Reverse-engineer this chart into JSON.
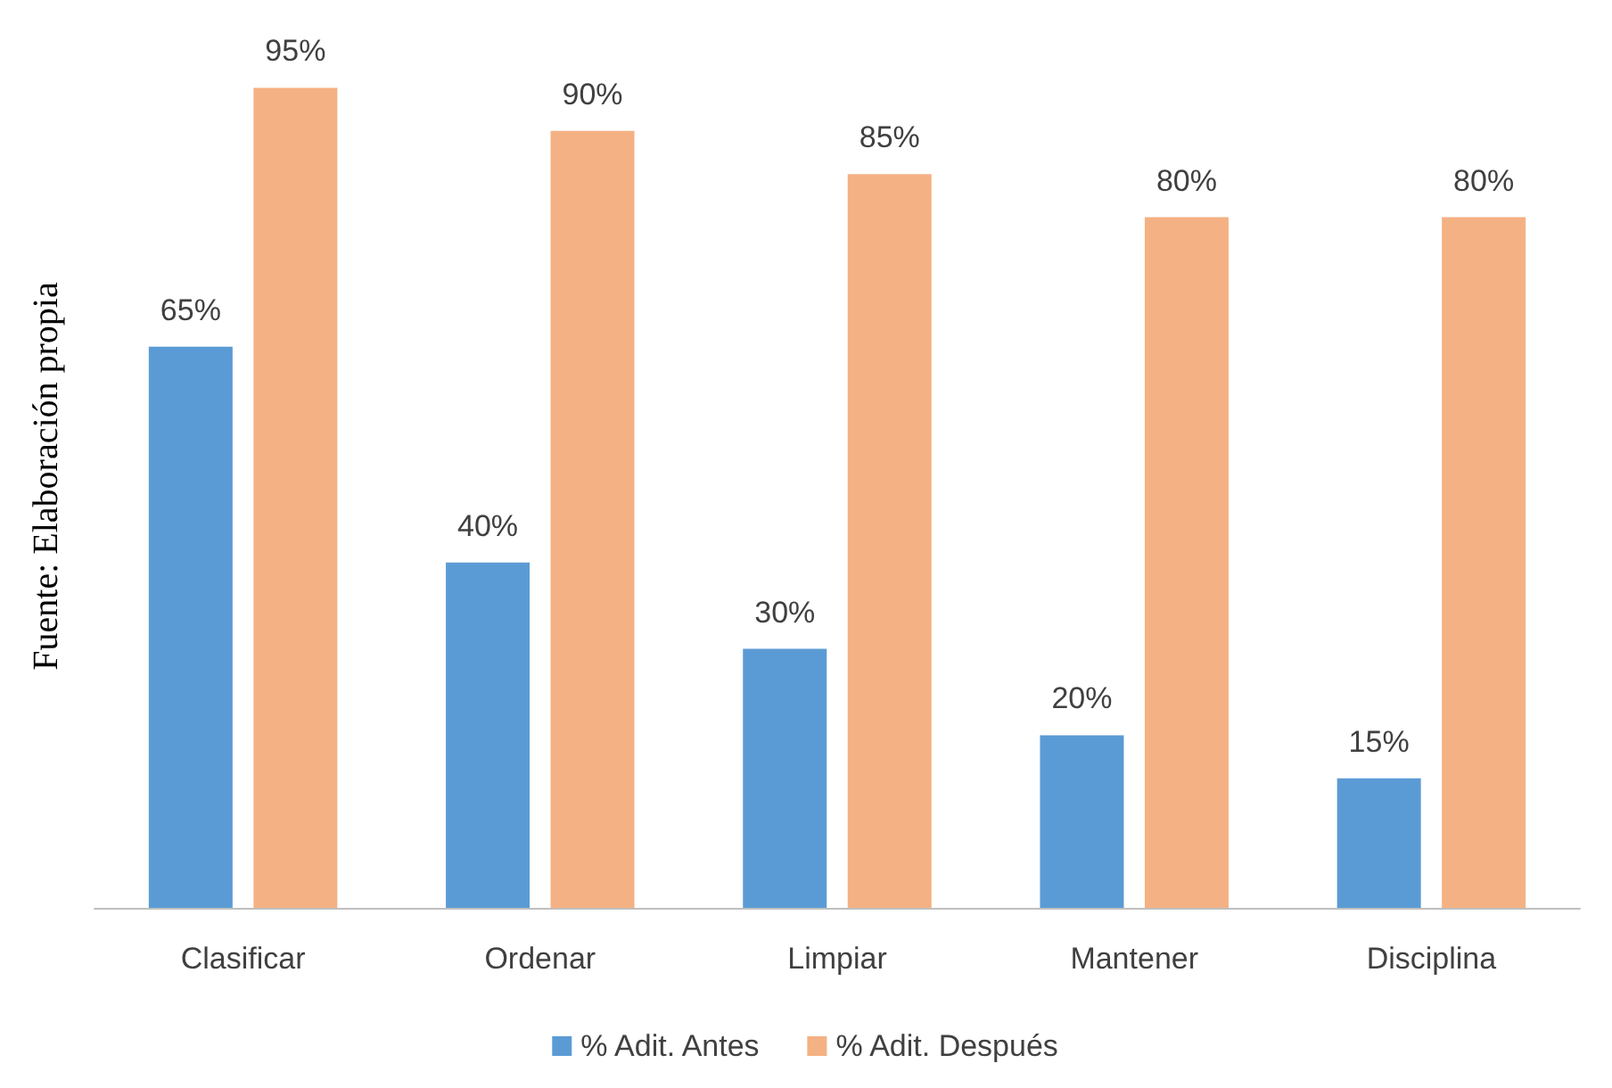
{
  "chart_data": {
    "type": "bar",
    "ylabel": "Fuente: Elaboración propia",
    "categories": [
      "Clasificar",
      "Ordenar",
      "Limpiar",
      "Mantener",
      "Disciplina"
    ],
    "series": [
      {
        "name": "% Adit. Antes",
        "color": "#5b9bd5",
        "values": [
          65,
          40,
          30,
          20,
          15
        ],
        "value_labels": [
          "65%",
          "40%",
          "30%",
          "20%",
          "15%"
        ]
      },
      {
        "name": "% Adit. Después",
        "color": "#f4b183",
        "values": [
          95,
          90,
          85,
          80,
          80
        ],
        "value_labels": [
          "95%",
          "90%",
          "85%",
          "80%",
          "80%"
        ]
      }
    ],
    "legend": "bottom",
    "grid": false
  }
}
